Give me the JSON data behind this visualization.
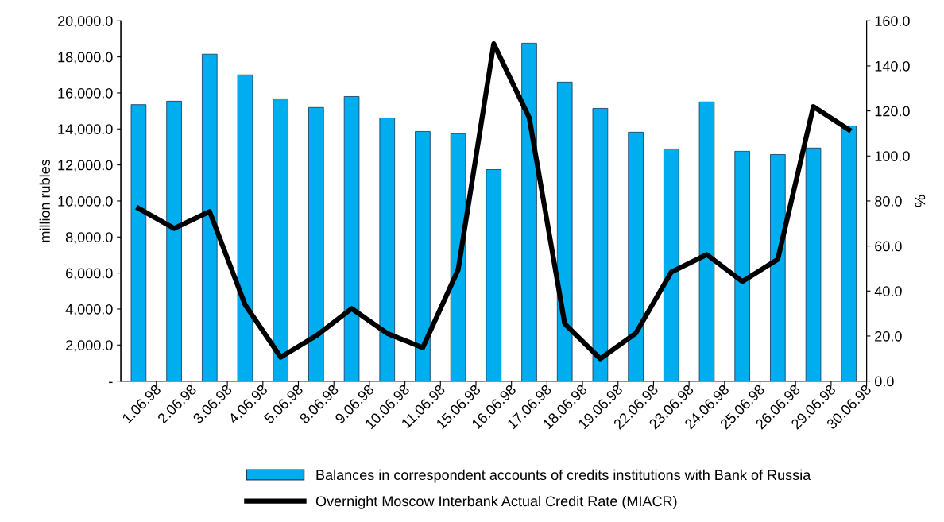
{
  "chart_data": {
    "type": "bar",
    "ylabel": "million rubles",
    "y2label": "%",
    "categories": [
      "1.06.98",
      "2.06.98",
      "3.06.98",
      "4.06.98",
      "5.06.98",
      "8.06.98",
      "9.06.98",
      "10.06.98",
      "11.06.98",
      "15.06.98",
      "16.06.98",
      "17.06.98",
      "18.06.98",
      "19.06.98",
      "22.06.98",
      "23.06.98",
      "24.06.98",
      "25.06.98",
      "26.06.98",
      "29.06.98",
      "30.06.98"
    ],
    "series": [
      {
        "name": "Balances in correspondent accounts of credits institutions with Bank of Russia",
        "color": "#00aeef",
        "values": [
          15350,
          15540,
          18150,
          17000,
          15670,
          15190,
          15800,
          14610,
          13860,
          13730,
          11740,
          18760,
          16600,
          15140,
          13820,
          12890,
          15500,
          12760,
          12580,
          12940,
          14170
        ]
      },
      {
        "name": "Overnight Moscow Interbank Actual Credit Rate (MIACR)",
        "type": "line",
        "axis": "y2",
        "color": "#000000",
        "values": [
          76.7,
          67.8,
          75.3,
          33.9,
          10.6,
          20.1,
          32.2,
          21.2,
          14.8,
          49.5,
          149.8,
          117,
          25.4,
          9.9,
          21.2,
          48.4,
          56.2,
          44.2,
          54.1,
          121.9,
          111.7
        ]
      }
    ],
    "ylim": [
      0,
      20000
    ],
    "yticks": [
      {
        "value": 0,
        "label": "-"
      },
      {
        "value": 2000,
        "label": "2,000.0"
      },
      {
        "value": 4000,
        "label": "4,000.0"
      },
      {
        "value": 6000,
        "label": "6,000.0"
      },
      {
        "value": 8000,
        "label": "8,000.0"
      },
      {
        "value": 10000,
        "label": "10,000.0"
      },
      {
        "value": 12000,
        "label": "12,000.0"
      },
      {
        "value": 14000,
        "label": "14,000.0"
      },
      {
        "value": 16000,
        "label": "16,000.0"
      },
      {
        "value": 18000,
        "label": "18,000.0"
      },
      {
        "value": 20000,
        "label": "20,000.0"
      }
    ],
    "y2lim": [
      0,
      160
    ],
    "y2ticks": [
      {
        "value": 0,
        "label": "0.0"
      },
      {
        "value": 20,
        "label": "20.0"
      },
      {
        "value": 40,
        "label": "40.0"
      },
      {
        "value": 60,
        "label": "60.0"
      },
      {
        "value": 80,
        "label": "80.0"
      },
      {
        "value": 100,
        "label": "100.0"
      },
      {
        "value": 120,
        "label": "120.0"
      },
      {
        "value": 140,
        "label": "140.0"
      },
      {
        "value": 160,
        "label": "160.0"
      }
    ],
    "grid": false,
    "legend": "bottom"
  }
}
